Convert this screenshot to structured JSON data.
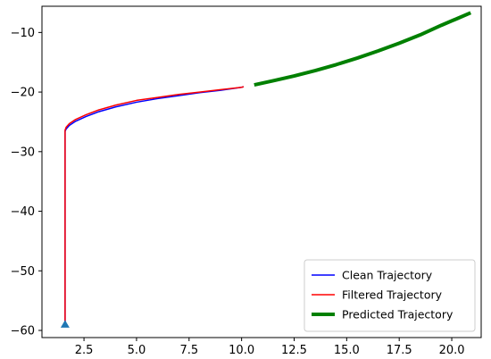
{
  "chart_data": {
    "type": "line",
    "title": "",
    "xlabel": "",
    "ylabel": "",
    "xlim": [
      0.5,
      21.4
    ],
    "ylim": [
      -61.2,
      -5.6
    ],
    "x_ticks": [
      2.5,
      5.0,
      7.5,
      10.0,
      12.5,
      15.0,
      17.5,
      20.0
    ],
    "x_tick_labels": [
      "2.5",
      "5.0",
      "7.5",
      "10.0",
      "12.5",
      "15.0",
      "17.5",
      "20.0"
    ],
    "y_ticks": [
      -60,
      -50,
      -40,
      -30,
      -20,
      -10
    ],
    "y_tick_labels": [
      "−60",
      "−50",
      "−40",
      "−30",
      "−20",
      "−10"
    ],
    "grid": false,
    "legend_position": "lower-right",
    "series": [
      {
        "name": "Clean Trajectory",
        "color": "#0000ff",
        "line_width": 1.5,
        "x": [
          1.6,
          1.6,
          1.6,
          1.6,
          1.6,
          1.6,
          1.6,
          1.65,
          1.8,
          2.1,
          2.6,
          3.2,
          4.0,
          5.0,
          6.0,
          7.0,
          8.0,
          9.0,
          10.0,
          10.1
        ],
        "y": [
          -59.0,
          -50.0,
          -40.0,
          -32.0,
          -28.0,
          -27.0,
          -26.6,
          -26.2,
          -25.6,
          -24.9,
          -24.1,
          -23.3,
          -22.5,
          -21.7,
          -21.1,
          -20.6,
          -20.1,
          -19.7,
          -19.2,
          -19.1
        ]
      },
      {
        "name": "Filtered Trajectory",
        "color": "#ff0000",
        "line_width": 1.5,
        "x": [
          1.6,
          1.6,
          1.6,
          1.6,
          1.6,
          1.6,
          1.6,
          1.65,
          1.8,
          2.1,
          2.6,
          3.2,
          4.0,
          5.0,
          6.0,
          7.0,
          8.0,
          9.0,
          10.0,
          10.1
        ],
        "y": [
          -59.0,
          -50.0,
          -40.0,
          -32.0,
          -28.0,
          -27.0,
          -26.4,
          -25.9,
          -25.3,
          -24.6,
          -23.8,
          -23.0,
          -22.2,
          -21.4,
          -20.9,
          -20.4,
          -20.0,
          -19.6,
          -19.2,
          -19.1
        ]
      },
      {
        "name": "Predicted Trajectory",
        "color": "#008000",
        "line_width": 4,
        "x": [
          10.6,
          11.5,
          12.5,
          13.5,
          14.5,
          15.5,
          16.5,
          17.5,
          18.5,
          19.5,
          20.3,
          20.9
        ],
        "y": [
          -18.8,
          -18.1,
          -17.3,
          -16.4,
          -15.4,
          -14.3,
          -13.1,
          -11.8,
          -10.4,
          -8.8,
          -7.6,
          -6.7
        ]
      }
    ],
    "start_marker": {
      "x": 1.6,
      "y": -59.0,
      "shape": "triangle",
      "color": "#1f77b4"
    }
  }
}
